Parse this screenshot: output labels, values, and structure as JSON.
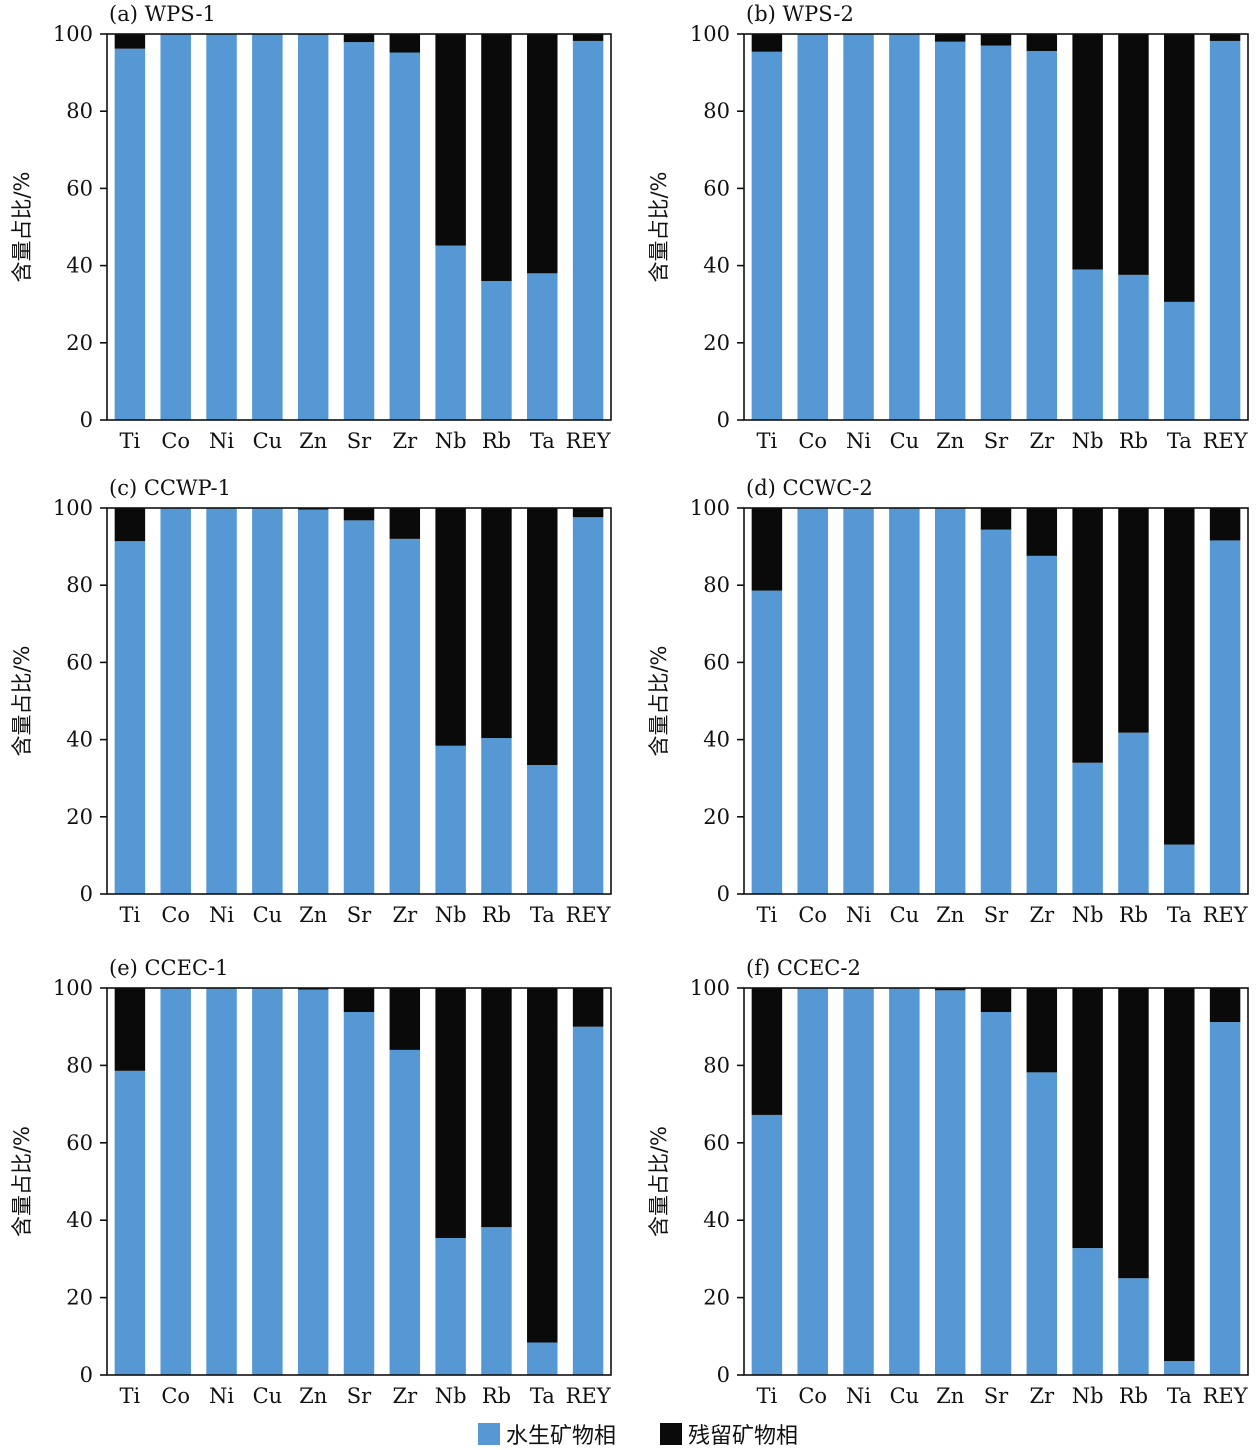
{
  "colors": {
    "aqueous": "#5598D3",
    "residual": "#0A0A0A"
  },
  "legend": {
    "aqueous": "水生矿物相",
    "residual": "残留矿物相"
  },
  "chart_data": [
    {
      "type": "bar",
      "title": "(a) WPS-1",
      "ylabel": "含量占比/%",
      "xlabel": "",
      "ylim": [
        0,
        100
      ],
      "yticks": [
        0,
        20,
        40,
        60,
        80,
        100
      ],
      "categories": [
        "Ti",
        "Co",
        "Ni",
        "Cu",
        "Zn",
        "Sr",
        "Zr",
        "Nb",
        "Rb",
        "Ta",
        "REY"
      ],
      "series": [
        {
          "name": "水生矿物相",
          "values": [
            96.2,
            100,
            100,
            100,
            99.8,
            97.9,
            95.2,
            45.2,
            36.0,
            38.0,
            98.2
          ]
        },
        {
          "name": "残留矿物相",
          "values": [
            3.8,
            0,
            0,
            0,
            0.2,
            2.1,
            4.8,
            54.8,
            64.0,
            62.0,
            1.8
          ]
        }
      ]
    },
    {
      "type": "bar",
      "title": "(b) WPS-2",
      "ylabel": "含量占比/%",
      "xlabel": "",
      "ylim": [
        0,
        100
      ],
      "yticks": [
        0,
        20,
        40,
        60,
        80,
        100
      ],
      "categories": [
        "Ti",
        "Co",
        "Ni",
        "Cu",
        "Zn",
        "Sr",
        "Zr",
        "Nb",
        "Rb",
        "Ta",
        "REY"
      ],
      "series": [
        {
          "name": "水生矿物相",
          "values": [
            95.4,
            100,
            100,
            100,
            98.0,
            97.0,
            95.6,
            39.0,
            37.6,
            30.6,
            98.2
          ]
        },
        {
          "name": "残留矿物相",
          "values": [
            4.6,
            0,
            0,
            0,
            2.0,
            3.0,
            4.4,
            61.0,
            62.4,
            69.4,
            1.8
          ]
        }
      ]
    },
    {
      "type": "bar",
      "title": "(c) CCWP-1",
      "ylabel": "含量占比/%",
      "xlabel": "",
      "ylim": [
        0,
        100
      ],
      "yticks": [
        0,
        20,
        40,
        60,
        80,
        100
      ],
      "categories": [
        "Ti",
        "Co",
        "Ni",
        "Cu",
        "Zn",
        "Sr",
        "Zr",
        "Nb",
        "Rb",
        "Ta",
        "REY"
      ],
      "series": [
        {
          "name": "水生矿物相",
          "values": [
            91.4,
            100,
            100,
            100,
            99.6,
            96.8,
            92.0,
            38.4,
            40.4,
            33.4,
            97.6
          ]
        },
        {
          "name": "残留矿物相",
          "values": [
            8.6,
            0,
            0,
            0,
            0.4,
            3.2,
            8.0,
            61.6,
            59.6,
            66.6,
            2.4
          ]
        }
      ]
    },
    {
      "type": "bar",
      "title": "(d) CCWC-2",
      "ylabel": "含量占比/%",
      "xlabel": "",
      "ylim": [
        0,
        100
      ],
      "yticks": [
        0,
        20,
        40,
        60,
        80,
        100
      ],
      "categories": [
        "Ti",
        "Co",
        "Ni",
        "Cu",
        "Zn",
        "Sr",
        "Zr",
        "Nb",
        "Rb",
        "Ta",
        "REY"
      ],
      "series": [
        {
          "name": "水生矿物相",
          "values": [
            78.6,
            100,
            100,
            100,
            99.8,
            94.4,
            87.6,
            34.0,
            41.8,
            12.8,
            91.6
          ]
        },
        {
          "name": "残留矿物相",
          "values": [
            21.4,
            0,
            0,
            0,
            0.2,
            5.6,
            12.4,
            66.0,
            58.2,
            87.2,
            8.4
          ]
        }
      ]
    },
    {
      "type": "bar",
      "title": "(e) CCEC-1",
      "ylabel": "含量占比/%",
      "xlabel": "",
      "ylim": [
        0,
        100
      ],
      "yticks": [
        0,
        20,
        40,
        60,
        80,
        100
      ],
      "categories": [
        "Ti",
        "Co",
        "Ni",
        "Cu",
        "Zn",
        "Sr",
        "Zr",
        "Nb",
        "Rb",
        "Ta",
        "REY"
      ],
      "series": [
        {
          "name": "水生矿物相",
          "values": [
            78.6,
            100,
            100,
            100,
            99.6,
            93.8,
            84.0,
            35.4,
            38.2,
            8.4,
            90.0
          ]
        },
        {
          "name": "残留矿物相",
          "values": [
            21.4,
            0,
            0,
            0,
            0.4,
            6.2,
            16.0,
            64.6,
            61.8,
            91.6,
            10.0
          ]
        }
      ]
    },
    {
      "type": "bar",
      "title": "(f) CCEC-2",
      "ylabel": "含量占比/%",
      "xlabel": "",
      "ylim": [
        0,
        100
      ],
      "yticks": [
        0,
        20,
        40,
        60,
        80,
        100
      ],
      "categories": [
        "Ti",
        "Co",
        "Ni",
        "Cu",
        "Zn",
        "Sr",
        "Zr",
        "Nb",
        "Rb",
        "Ta",
        "REY"
      ],
      "series": [
        {
          "name": "水生矿物相",
          "values": [
            67.2,
            100,
            100,
            100,
            99.4,
            93.8,
            78.2,
            32.8,
            25.0,
            3.6,
            91.2
          ]
        },
        {
          "name": "残留矿物相",
          "values": [
            32.8,
            0,
            0,
            0,
            0.6,
            6.2,
            21.8,
            67.2,
            75.0,
            96.4,
            8.8
          ]
        }
      ]
    }
  ]
}
